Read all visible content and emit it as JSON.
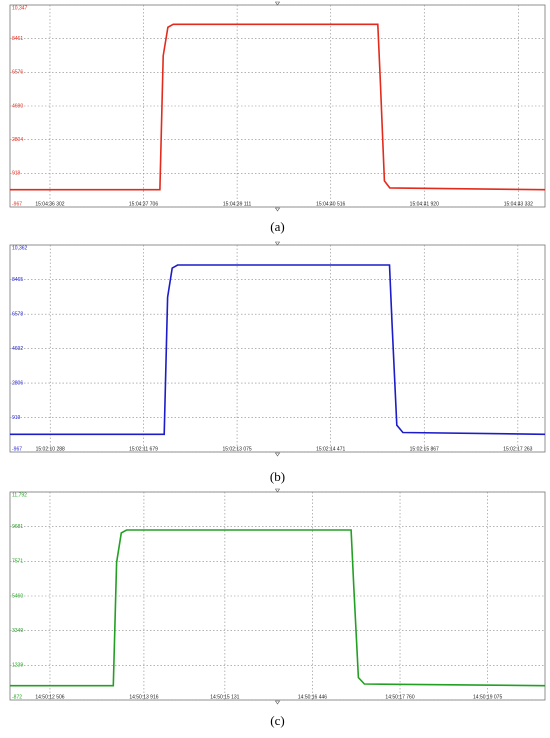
{
  "chart_data": [
    {
      "type": "line",
      "caption": "(a)",
      "color": "#e32a1c",
      "grid": true,
      "x": [
        -0.6,
        1.65,
        1.7,
        1.77,
        1.85,
        4.92,
        4.96,
        5.02,
        5.1,
        7.43
      ],
      "values": [
        0,
        0,
        7500,
        9100,
        9267,
        9267,
        6000,
        500,
        100,
        0
      ],
      "xlim": [
        -0.6,
        7.43
      ],
      "ylim": [
        -967,
        10347
      ],
      "xticks": [
        {
          "value": 0,
          "label": "15:04:36 302"
        },
        {
          "value": 1.404,
          "label": "15:04:37 706"
        },
        {
          "value": 2.809,
          "label": "15:04:39 111"
        },
        {
          "value": 4.214,
          "label": "15:04:40 516"
        },
        {
          "value": 5.618,
          "label": "15:04:41 920"
        },
        {
          "value": 7.03,
          "label": "15:04:43 332"
        }
      ],
      "yticks": [
        -967,
        919,
        2804,
        4690,
        6576,
        8461,
        {
          "value": 10347,
          "label": "10,347"
        }
      ]
    },
    {
      "type": "line",
      "caption": "(b)",
      "color": "#1c1cc8",
      "grid": true,
      "x": [
        -0.6,
        1.7,
        1.75,
        1.82,
        1.9,
        5.06,
        5.1,
        5.17,
        5.26,
        7.38
      ],
      "values": [
        0,
        0,
        7500,
        9100,
        9270,
        9270,
        6000,
        500,
        100,
        0
      ],
      "xlim": [
        -0.6,
        7.38
      ],
      "ylim": [
        -967,
        10362
      ],
      "xticks": [
        {
          "value": 0,
          "label": "15:02:10 288"
        },
        {
          "value": 1.391,
          "label": "15:02:11 679"
        },
        {
          "value": 2.787,
          "label": "15:02:13 075"
        },
        {
          "value": 4.183,
          "label": "15:02:14 471"
        },
        {
          "value": 5.579,
          "label": "15:02:15 867"
        },
        {
          "value": 6.975,
          "label": "15:02:17 263"
        }
      ],
      "yticks": [
        -967,
        919,
        2806,
        4692,
        6578,
        8465,
        {
          "value": 10362,
          "label": "10,362"
        }
      ]
    },
    {
      "type": "line",
      "caption": "(c)",
      "color": "#23a023",
      "grid": true,
      "x": [
        -0.6,
        0.95,
        1.0,
        1.07,
        1.15,
        4.52,
        4.56,
        4.63,
        4.72,
        7.43
      ],
      "values": [
        0,
        0,
        7500,
        9300,
        9480,
        9480,
        6000,
        500,
        100,
        0
      ],
      "xlim": [
        -0.6,
        7.43
      ],
      "ylim": [
        -872,
        11792
      ],
      "xticks": [
        {
          "value": 0,
          "label": "14:50:12 506"
        },
        {
          "value": 1.41,
          "label": "14:50:13 916"
        },
        {
          "value": 2.625,
          "label": "14:50:15 131"
        },
        {
          "value": 3.94,
          "label": "14:50:16 446"
        },
        {
          "value": 5.254,
          "label": "14:50:17 760"
        },
        {
          "value": 6.569,
          "label": "14:50:19 075"
        }
      ],
      "yticks": [
        -872,
        1239,
        3349,
        5460,
        7571,
        9681,
        {
          "value": 11792,
          "label": "11,792"
        }
      ]
    }
  ]
}
